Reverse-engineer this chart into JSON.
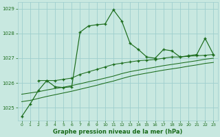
{
  "bg_color": "#c8e8e0",
  "grid_color": "#9ecece",
  "line_color": "#1a6b1a",
  "title": "Graphe pression niveau de la mer (hPa)",
  "xlim": [
    -0.5,
    23.5
  ],
  "ylim": [
    1024.5,
    1029.25
  ],
  "yticks": [
    1025,
    1026,
    1027,
    1028,
    1029
  ],
  "xticks": [
    0,
    1,
    2,
    3,
    4,
    5,
    6,
    7,
    8,
    9,
    10,
    11,
    12,
    13,
    14,
    15,
    16,
    17,
    18,
    19,
    20,
    21,
    22,
    23
  ],
  "s1_x": [
    0,
    1,
    2,
    3,
    4,
    5,
    6,
    7,
    8,
    9,
    10,
    11,
    12,
    13,
    14,
    15,
    16,
    17,
    18,
    19,
    20,
    21,
    22,
    23
  ],
  "s1_y": [
    1024.65,
    1025.15,
    1025.7,
    1026.1,
    1025.85,
    1025.82,
    1025.85,
    1028.05,
    1028.3,
    1028.35,
    1028.38,
    1028.95,
    1028.5,
    1027.6,
    1027.35,
    1027.05,
    1027.0,
    1027.35,
    1027.3,
    1027.05,
    1027.1,
    1027.15,
    1027.8,
    1027.15
  ],
  "s2_x": [
    2,
    3,
    4,
    5,
    6,
    7,
    8,
    9,
    10,
    11,
    12,
    13,
    14,
    15,
    16,
    17,
    18,
    19,
    20,
    21,
    22,
    23
  ],
  "s2_y": [
    1026.1,
    1026.1,
    1026.1,
    1026.15,
    1026.2,
    1026.35,
    1026.45,
    1026.55,
    1026.65,
    1026.75,
    1026.8,
    1026.85,
    1026.9,
    1026.92,
    1026.95,
    1027.0,
    1027.05,
    1027.05,
    1027.08,
    1027.1,
    1027.12,
    1027.15
  ],
  "s3_x": [
    0,
    1,
    2,
    3,
    4,
    5,
    6,
    7,
    8,
    9,
    10,
    11,
    12,
    13,
    14,
    15,
    16,
    17,
    18,
    19,
    20,
    21,
    22,
    23
  ],
  "s3_y": [
    1025.55,
    1025.6,
    1025.65,
    1025.72,
    1025.78,
    1025.83,
    1025.9,
    1025.97,
    1026.05,
    1026.12,
    1026.2,
    1026.28,
    1026.38,
    1026.46,
    1026.52,
    1026.58,
    1026.64,
    1026.7,
    1026.75,
    1026.8,
    1026.85,
    1026.9,
    1026.96,
    1027.0
  ],
  "s4_x": [
    0,
    1,
    2,
    3,
    4,
    5,
    6,
    7,
    8,
    9,
    10,
    11,
    12,
    13,
    14,
    15,
    16,
    17,
    18,
    19,
    20,
    21,
    22,
    23
  ],
  "s4_y": [
    1025.25,
    1025.3,
    1025.38,
    1025.46,
    1025.53,
    1025.6,
    1025.67,
    1025.75,
    1025.83,
    1025.91,
    1026.0,
    1026.08,
    1026.18,
    1026.27,
    1026.34,
    1026.4,
    1026.46,
    1026.52,
    1026.57,
    1026.62,
    1026.68,
    1026.73,
    1026.79,
    1026.83
  ]
}
